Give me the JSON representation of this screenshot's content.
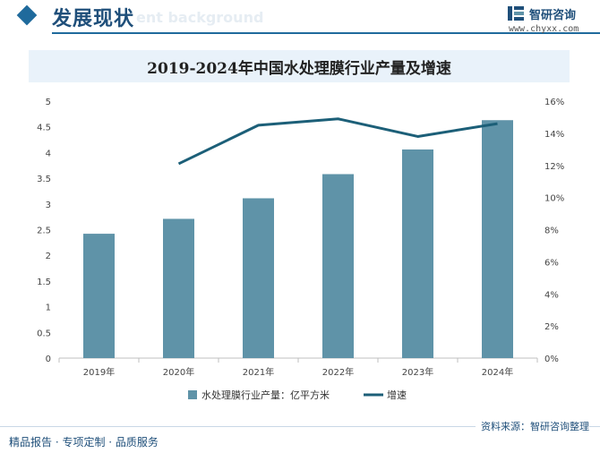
{
  "header": {
    "section_title": "发展现状",
    "ghost_text": "ent background",
    "logo_name": "智研咨询",
    "logo_url": "www.chyxx.com",
    "logo_icon": "zhiyan-logo-icon"
  },
  "chart_title": "2019-2024年中国水处理膜行业产量及增速",
  "chart_data": {
    "type": "bar",
    "title": "2019-2024年中国水处理膜行业产量及增速",
    "categories": [
      "2019年",
      "2020年",
      "2021年",
      "2022年",
      "2023年",
      "2024年"
    ],
    "series": [
      {
        "name": "水处理膜行业产量：亿平方米",
        "type": "bar",
        "axis": "left",
        "values": [
          2.42,
          2.71,
          3.11,
          3.58,
          4.06,
          4.63
        ]
      },
      {
        "name": "增速",
        "type": "line",
        "axis": "right",
        "values": [
          null,
          12.1,
          14.5,
          14.9,
          13.8,
          14.6
        ]
      }
    ],
    "y_left": {
      "min": 0,
      "max": 5,
      "ticks": [
        "0",
        "0.5",
        "1",
        "1.5",
        "2",
        "2.5",
        "3",
        "3.5",
        "4",
        "4.5",
        "5"
      ]
    },
    "y_right": {
      "min": 0,
      "max": 16,
      "ticks": [
        "0%",
        "2%",
        "4%",
        "6%",
        "8%",
        "10%",
        "12%",
        "14%",
        "16%"
      ]
    },
    "grid": false,
    "legend_position": "bottom",
    "colors": {
      "bar": "#5f93a8",
      "line": "#1c5f78"
    }
  },
  "footer": {
    "source": "资料来源：智研咨询整理",
    "tagline": "精品报告 · 专项定制 · 品质服务"
  }
}
